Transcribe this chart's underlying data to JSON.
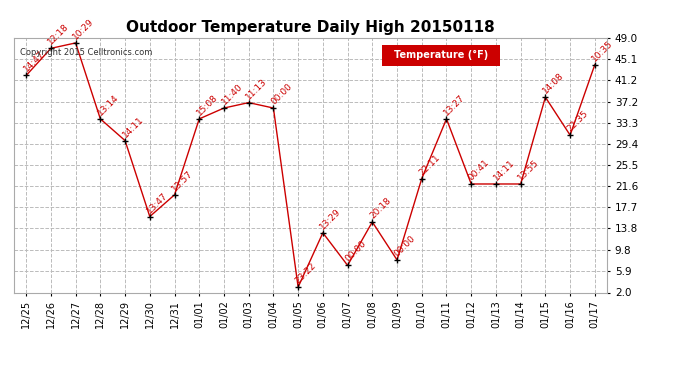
{
  "title": "Outdoor Temperature Daily High 20150118",
  "legend_label": "Temperature (°F)",
  "copyright": "Copyright 2015 Celltronics.com",
  "dates": [
    "12/25",
    "12/26",
    "12/27",
    "12/28",
    "12/29",
    "12/30",
    "12/31",
    "01/01",
    "01/02",
    "01/03",
    "01/04",
    "01/05",
    "01/06",
    "01/07",
    "01/08",
    "01/09",
    "01/10",
    "01/11",
    "01/12",
    "01/13",
    "01/14",
    "01/15",
    "01/16",
    "01/17"
  ],
  "values": [
    42.0,
    47.0,
    48.0,
    34.0,
    30.0,
    16.0,
    20.0,
    34.0,
    36.0,
    37.0,
    36.0,
    3.0,
    13.0,
    7.0,
    15.0,
    8.0,
    23.0,
    34.0,
    22.0,
    22.0,
    22.0,
    38.0,
    31.0,
    44.0
  ],
  "time_labels": [
    "14:47",
    "12:18",
    "10:29",
    "13:14",
    "14:11",
    "13:47",
    "13:57",
    "15:08",
    "11:40",
    "11:13",
    "00:00",
    "23:22",
    "13:29",
    "00:00",
    "20:18",
    "00:00",
    "22:11",
    "13:27",
    "00:41",
    "14:11",
    "13:55",
    "14:08",
    "22:35",
    "10:35"
  ],
  "line_color": "#cc0000",
  "marker_color": "black",
  "label_color": "#cc0000",
  "bg_color": "#ffffff",
  "plot_bg": "#ffffff",
  "grid_color": "#bbbbbb",
  "ylim": [
    2.0,
    49.0
  ],
  "yticks": [
    2.0,
    5.9,
    9.8,
    13.8,
    17.7,
    21.6,
    25.5,
    29.4,
    33.3,
    37.2,
    41.2,
    45.1,
    49.0
  ],
  "legend_bg": "#cc0000",
  "legend_text": "#ffffff",
  "title_fontsize": 11,
  "label_fontsize": 6.5,
  "tick_fontsize": 7,
  "ytick_fontsize": 7.5
}
